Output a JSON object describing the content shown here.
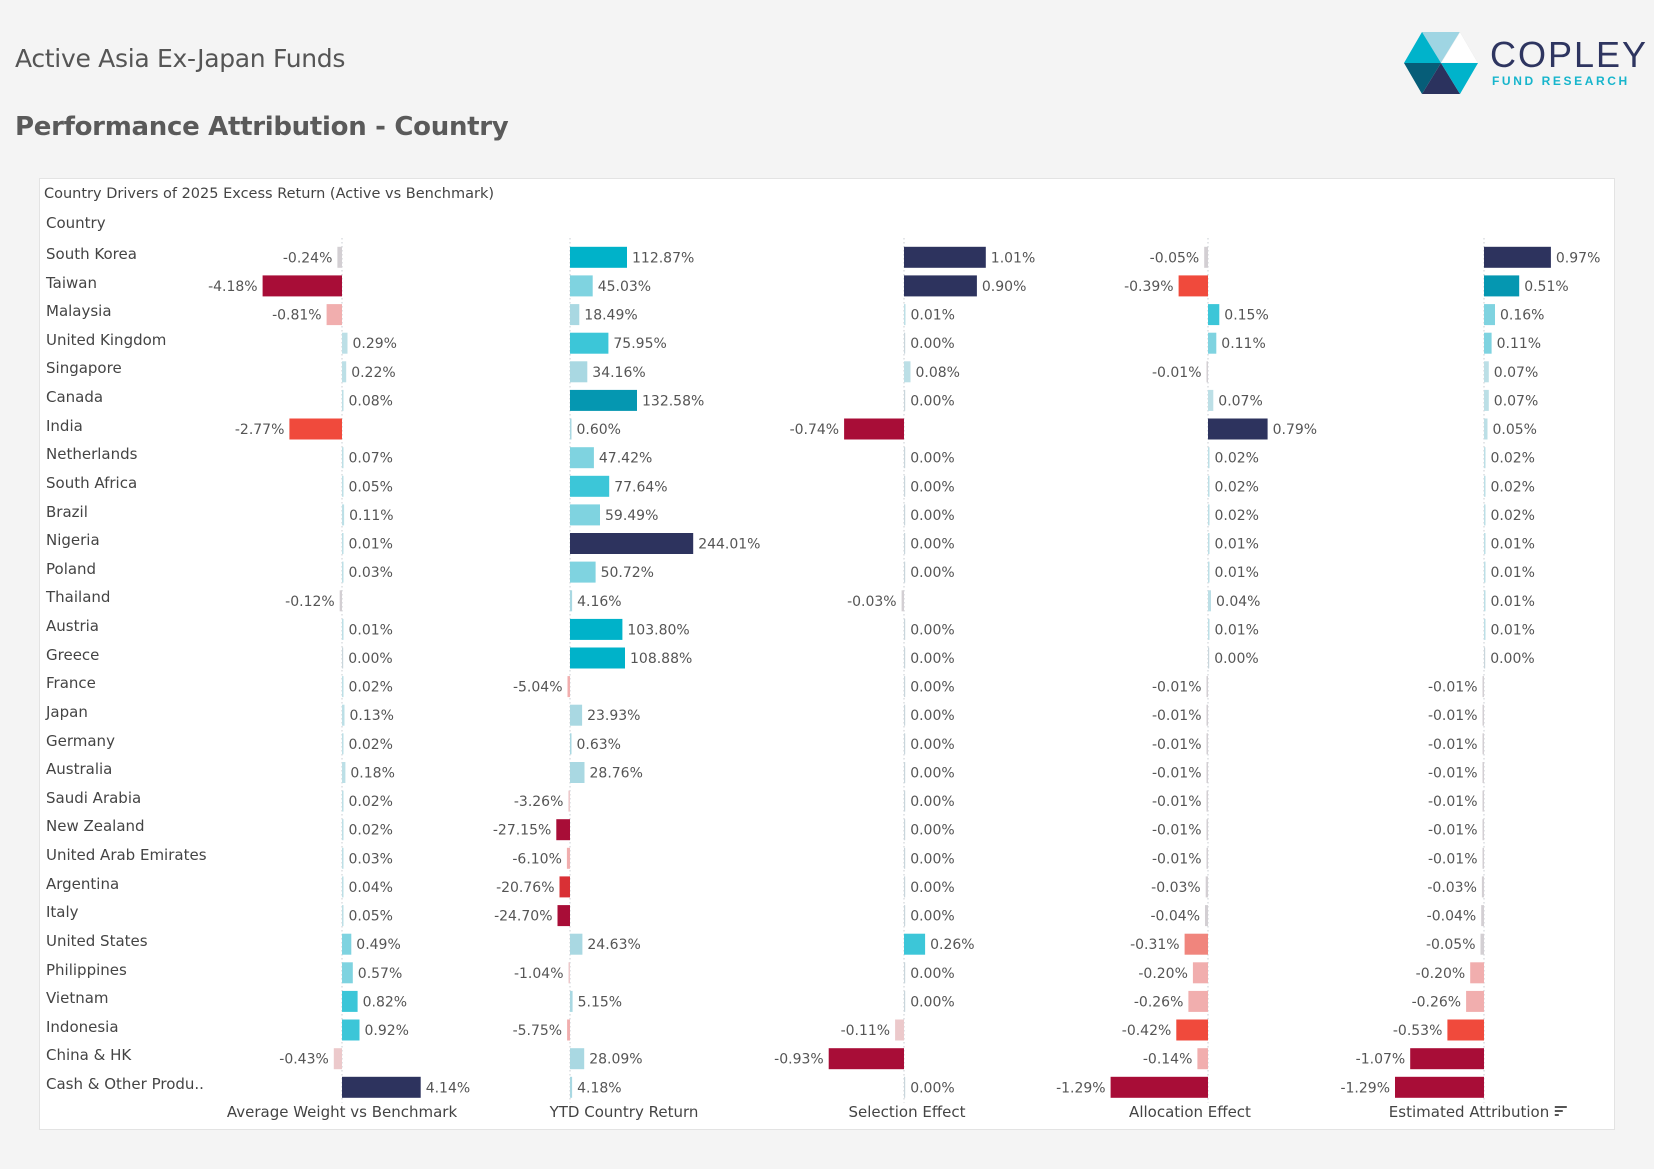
{
  "header": {
    "title": "Active Asia Ex-Japan Funds",
    "subtitle": "Performance Attribution - Country"
  },
  "logo": {
    "name": "COPLEY",
    "tagline": "FUND RESEARCH",
    "icon": "hexagon-logo-icon"
  },
  "colors": {
    "navy": "#2d335e",
    "dark_blue": "#1f4466",
    "teal_dark": "#0597b1",
    "teal": "#00b2c9",
    "cyan": "#3cc6d8",
    "cyan_light": "#7fd3e0",
    "blue_light": "#a9d8e2",
    "blue_pale": "#bcdfe6",
    "crimson": "#a80d37",
    "red": "#d93035",
    "red_orange": "#f04a3c",
    "salmon": "#f0857d",
    "pink": "#f1aeae",
    "pink_pale": "#ecc9cb",
    "grey_pale": "#d3cfd3",
    "background": "#f4f4f4",
    "panel": "#ffffff"
  },
  "chart_data": {
    "type": "bar",
    "title": "Country Drivers of 2025 Excess Return (Active vs Benchmark)",
    "row_header": "Country",
    "sort_indicator": "sort-descending-icon",
    "sorted_by": "Estimated Attribution",
    "unit": "%",
    "categories": [
      "South Korea",
      "Taiwan",
      "Malaysia",
      "United Kingdom",
      "Singapore",
      "Canada",
      "India",
      "Netherlands",
      "South Africa",
      "Brazil",
      "Nigeria",
      "Poland",
      "Thailand",
      "Austria",
      "Greece",
      "France",
      "Japan",
      "Germany",
      "Australia",
      "Saudi Arabia",
      "New Zealand",
      "United Arab Emirates",
      "Argentina",
      "Italy",
      "United States",
      "Philippines",
      "Vietnam",
      "Indonesia",
      "China & HK",
      "Cash & Other Produ.."
    ],
    "series": [
      {
        "name": "Average Weight vs Benchmark",
        "values": [
          -0.24,
          -4.18,
          -0.81,
          0.29,
          0.22,
          0.08,
          -2.77,
          0.07,
          0.05,
          0.11,
          0.01,
          0.03,
          -0.12,
          0.01,
          0.0,
          0.02,
          0.13,
          0.02,
          0.18,
          0.02,
          0.02,
          0.03,
          0.04,
          0.05,
          0.49,
          0.57,
          0.82,
          0.92,
          -0.43,
          4.14
        ]
      },
      {
        "name": "YTD Country Return",
        "values": [
          112.87,
          45.03,
          18.49,
          75.95,
          34.16,
          132.58,
          0.6,
          47.42,
          77.64,
          59.49,
          244.01,
          50.72,
          4.16,
          103.8,
          108.88,
          -5.04,
          23.93,
          0.63,
          28.76,
          -3.26,
          -27.15,
          -6.1,
          -20.76,
          -24.7,
          24.63,
          -1.04,
          5.15,
          -5.75,
          28.09,
          4.18
        ]
      },
      {
        "name": "Selection Effect",
        "values": [
          1.01,
          0.9,
          0.01,
          0.0,
          0.08,
          0.0,
          -0.74,
          0.0,
          0.0,
          0.0,
          0.0,
          0.0,
          -0.03,
          0.0,
          0.0,
          0.0,
          0.0,
          0.0,
          0.0,
          0.0,
          0.0,
          0.0,
          0.0,
          0.0,
          0.26,
          -0.0,
          0.0,
          -0.11,
          -0.93,
          0.0
        ]
      },
      {
        "name": "Allocation Effect",
        "values": [
          -0.05,
          -0.39,
          0.15,
          0.11,
          -0.01,
          0.07,
          0.79,
          0.02,
          0.02,
          0.02,
          0.01,
          0.01,
          0.04,
          0.01,
          0.0,
          -0.01,
          -0.01,
          -0.01,
          -0.01,
          -0.01,
          -0.01,
          -0.01,
          -0.03,
          -0.04,
          -0.31,
          -0.2,
          -0.26,
          -0.42,
          -0.14,
          -1.29
        ]
      },
      {
        "name": "Estimated Attribution",
        "values": [
          0.97,
          0.51,
          0.16,
          0.11,
          0.07,
          0.07,
          0.05,
          0.02,
          0.02,
          0.02,
          0.01,
          0.01,
          0.01,
          0.01,
          0.0,
          -0.01,
          -0.01,
          -0.01,
          -0.01,
          -0.01,
          -0.01,
          -0.01,
          -0.03,
          -0.04,
          -0.05,
          -0.2,
          -0.26,
          -0.53,
          -1.07,
          -1.29
        ]
      }
    ],
    "labels": [
      [
        "-0.24%",
        "-4.18%",
        "-0.81%",
        "0.29%",
        "0.22%",
        "0.08%",
        "-2.77%",
        "0.07%",
        "0.05%",
        "0.11%",
        "0.01%",
        "0.03%",
        "-0.12%",
        "0.01%",
        "0.00%",
        "0.02%",
        "0.13%",
        "0.02%",
        "0.18%",
        "0.02%",
        "0.02%",
        "0.03%",
        "0.04%",
        "0.05%",
        "0.49%",
        "0.57%",
        "0.82%",
        "0.92%",
        "-0.43%",
        "4.14%"
      ],
      [
        "112.87%",
        "45.03%",
        "18.49%",
        "75.95%",
        "34.16%",
        "132.58%",
        "0.60%",
        "47.42%",
        "77.64%",
        "59.49%",
        "244.01%",
        "50.72%",
        "4.16%",
        "103.80%",
        "108.88%",
        "-5.04%",
        "23.93%",
        "0.63%",
        "28.76%",
        "-3.26%",
        "-27.15%",
        "-6.10%",
        "-20.76%",
        "-24.70%",
        "24.63%",
        "-1.04%",
        "5.15%",
        "-5.75%",
        "28.09%",
        "4.18%"
      ],
      [
        "1.01%",
        "0.90%",
        "0.01%",
        "0.00%",
        "0.08%",
        "0.00%",
        "-0.74%",
        "0.00%",
        "0.00%",
        "0.00%",
        "0.00%",
        "0.00%",
        "-0.03%",
        "0.00%",
        "0.00%",
        "0.00%",
        "0.00%",
        "0.00%",
        "0.00%",
        "0.00%",
        "0.00%",
        "0.00%",
        "0.00%",
        "0.00%",
        "0.26%",
        "0.00%",
        "0.00%",
        "-0.11%",
        "-0.93%",
        "0.00%"
      ],
      [
        "-0.05%",
        "-0.39%",
        "0.15%",
        "0.11%",
        "-0.01%",
        "0.07%",
        "0.79%",
        "0.02%",
        "0.02%",
        "0.02%",
        "0.01%",
        "0.01%",
        "0.04%",
        "0.01%",
        "0.00%",
        "-0.01%",
        "-0.01%",
        "-0.01%",
        "-0.01%",
        "-0.01%",
        "-0.01%",
        "-0.01%",
        "-0.03%",
        "-0.04%",
        "-0.31%",
        "-0.20%",
        "-0.26%",
        "-0.42%",
        "-0.14%",
        "-1.29%"
      ],
      [
        "0.97%",
        "0.51%",
        "0.16%",
        "0.11%",
        "0.07%",
        "0.07%",
        "0.05%",
        "0.02%",
        "0.02%",
        "0.02%",
        "0.01%",
        "0.01%",
        "0.01%",
        "0.01%",
        "0.00%",
        "-0.01%",
        "-0.01%",
        "-0.01%",
        "-0.01%",
        "-0.01%",
        "-0.01%",
        "-0.01%",
        "-0.03%",
        "-0.04%",
        "-0.05%",
        "-0.20%",
        "-0.26%",
        "-0.53%",
        "-1.07%",
        "-1.29%"
      ]
    ]
  }
}
